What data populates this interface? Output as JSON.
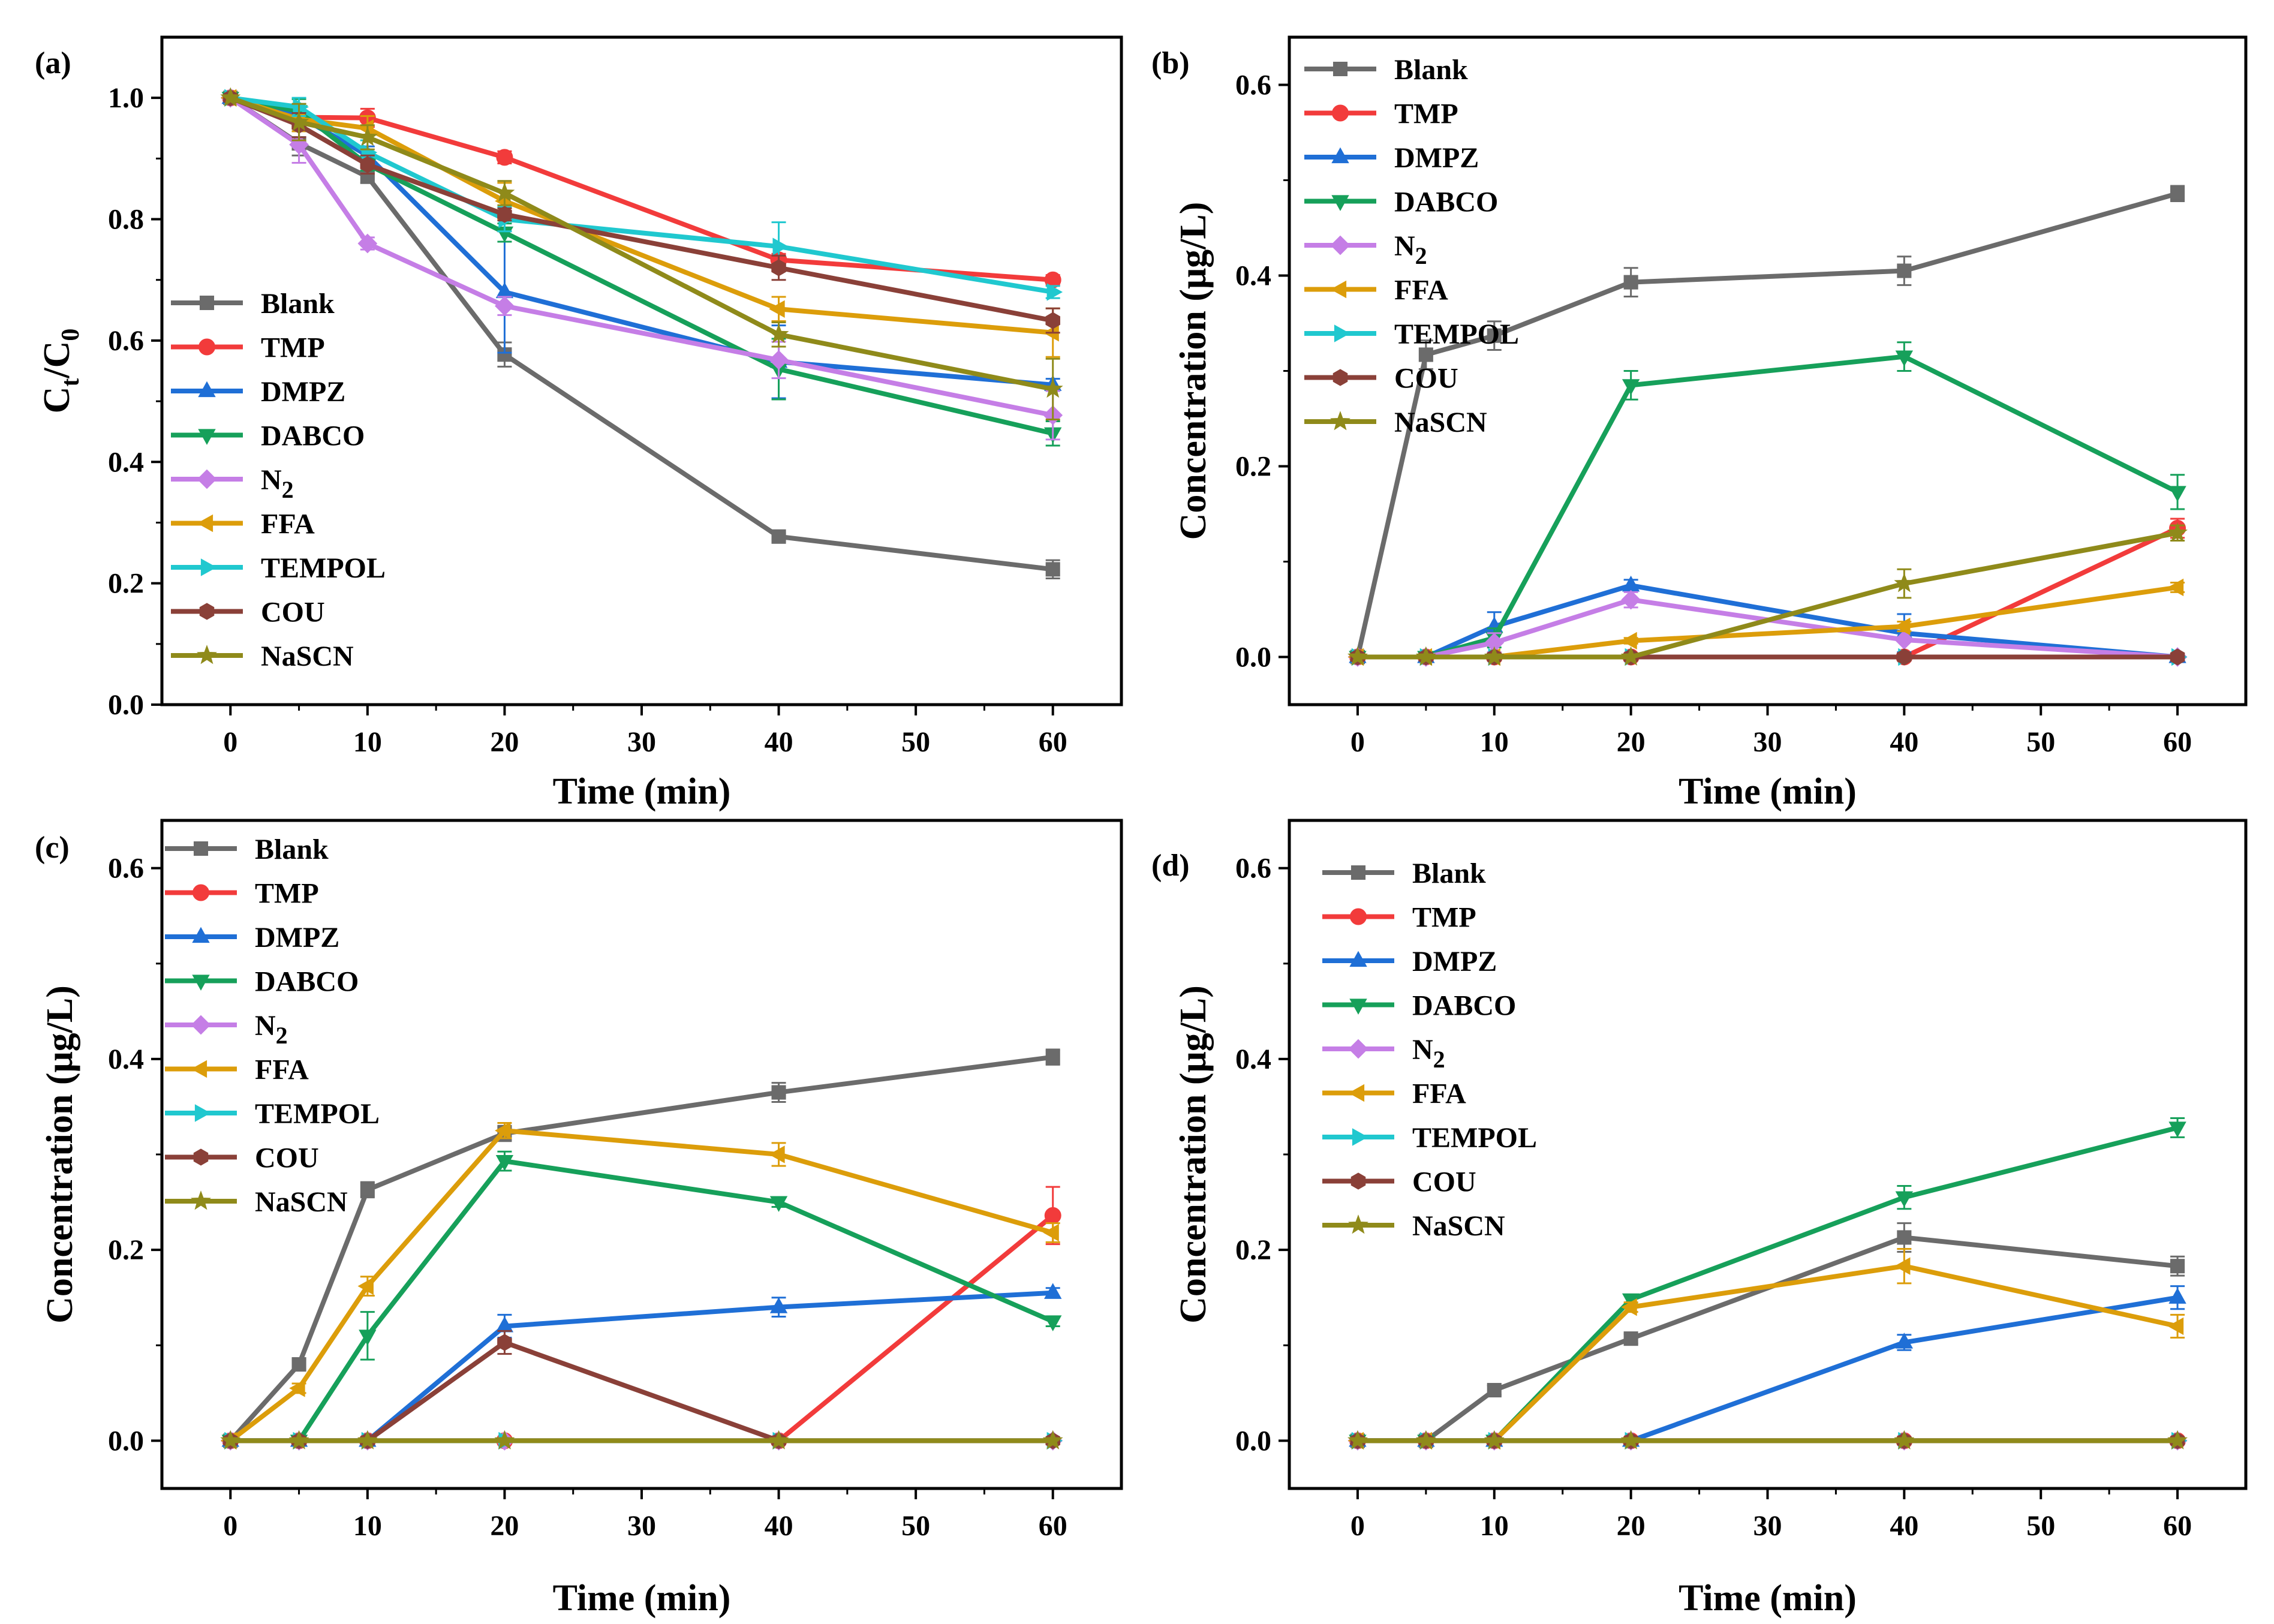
{
  "figure": {
    "series_colors": {
      "Blank": "#6b6b6b",
      "TMP": "#f23b3b",
      "DMPZ": "#1f6fd6",
      "DABCO": "#16a05a",
      "N2": "#c57ee6",
      "FFA": "#dc9d0a",
      "TEMPOL": "#20c8cf",
      "COU": "#8a4038",
      "NaSCN": "#8f8a1a"
    },
    "series_markers": {
      "Blank": "square",
      "TMP": "circle",
      "DMPZ": "triangle-up",
      "DABCO": "triangle-down",
      "N2": "diamond",
      "FFA": "triangle-left",
      "TEMPOL": "triangle-right",
      "COU": "hexagon",
      "NaSCN": "star"
    }
  },
  "chart_data": [
    {
      "panel": "(a)",
      "type": "line",
      "xlabel": "Time (min)",
      "ylabel": "C_t/C_0",
      "ylabel_parts": {
        "main": "C",
        "sub1": "t",
        "sep": "/C",
        "sub2": "0"
      },
      "xlim": [
        -5,
        65
      ],
      "ylim": [
        0,
        1.1
      ],
      "xticks": [
        0,
        10,
        20,
        30,
        40,
        50,
        60
      ],
      "xtick_labels": [
        "0",
        "10",
        "20",
        "30",
        "40",
        "50",
        "60"
      ],
      "yticks": [
        0,
        0.2,
        0.4,
        0.6,
        0.8,
        1.0
      ],
      "ytick_labels": [
        "0.0",
        "0.2",
        "0.4",
        "0.6",
        "0.8",
        "1.0"
      ],
      "legend_position": "lower-left",
      "x": [
        0,
        5,
        10,
        20,
        40,
        60
      ],
      "series": [
        {
          "name": "Blank",
          "label": "Blank",
          "values": [
            1.0,
            0.925,
            0.87,
            0.577,
            0.277,
            0.223
          ],
          "errors": [
            0,
            0.02,
            0.01,
            0.02,
            0.005,
            0.015
          ]
        },
        {
          "name": "TMP",
          "label": "TMP",
          "values": [
            1.0,
            0.968,
            0.967,
            0.902,
            0.733,
            0.7
          ],
          "errors": [
            0,
            0.01,
            0.015,
            0.01,
            0.01,
            0.008
          ]
        },
        {
          "name": "DMPZ",
          "label": "DMPZ",
          "values": [
            1.0,
            0.97,
            0.905,
            0.68,
            0.565,
            0.527
          ],
          "errors": [
            0,
            0.02,
            0.015,
            0.1,
            0.06,
            0.01
          ]
        },
        {
          "name": "DABCO",
          "label": "DABCO",
          "values": [
            1.0,
            0.978,
            0.89,
            0.778,
            0.553,
            0.447
          ],
          "errors": [
            0,
            0.02,
            0.01,
            0.015,
            0.05,
            0.02
          ]
        },
        {
          "name": "N2",
          "label": "N2",
          "label_main": "N",
          "label_sub": "2",
          "values": [
            1.0,
            0.923,
            0.76,
            0.657,
            0.568,
            0.477
          ],
          "errors": [
            0,
            0.03,
            0.01,
            0.015,
            0.03,
            0.04
          ]
        },
        {
          "name": "FFA",
          "label": "FFA",
          "values": [
            1.0,
            0.965,
            0.95,
            0.83,
            0.652,
            0.613
          ],
          "errors": [
            0,
            0.02,
            0.02,
            0.03,
            0.02,
            0.04
          ]
        },
        {
          "name": "TEMPOL",
          "label": "TEMPOL",
          "values": [
            1.0,
            0.985,
            0.91,
            0.8,
            0.755,
            0.68
          ],
          "errors": [
            0,
            0.015,
            0.02,
            0.02,
            0.04,
            0.01
          ]
        },
        {
          "name": "COU",
          "label": "COU",
          "values": [
            1.0,
            0.955,
            0.89,
            0.808,
            0.72,
            0.633
          ],
          "errors": [
            0,
            0.02,
            0.015,
            0.01,
            0.02,
            0.02
          ]
        },
        {
          "name": "NaSCN",
          "label": "NaSCN",
          "values": [
            1.0,
            0.96,
            0.935,
            0.843,
            0.61,
            0.52
          ],
          "errors": [
            0,
            0.03,
            0.02,
            0.02,
            0.02,
            0.05
          ]
        }
      ]
    },
    {
      "panel": "(b)",
      "type": "line",
      "xlabel": "Time (min)",
      "ylabel": "Concentration (μg/L)",
      "xlim": [
        -5,
        65
      ],
      "ylim": [
        -0.05,
        0.65
      ],
      "xticks": [
        0,
        10,
        20,
        30,
        40,
        50,
        60
      ],
      "xtick_labels": [
        "0",
        "10",
        "20",
        "30",
        "40",
        "50",
        "60"
      ],
      "yticks": [
        0,
        0.2,
        0.4,
        0.6
      ],
      "ytick_labels": [
        "0.0",
        "0.2",
        "0.4",
        "0.6"
      ],
      "legend_position": "upper-left",
      "x": [
        0,
        5,
        10,
        20,
        40,
        60
      ],
      "series": [
        {
          "name": "Blank",
          "label": "Blank",
          "values": [
            0,
            0.317,
            0.337,
            0.393,
            0.405,
            0.486
          ],
          "errors": [
            0,
            0.015,
            0.015,
            0.015,
            0.015,
            0.008
          ]
        },
        {
          "name": "TMP",
          "label": "TMP",
          "values": [
            0,
            0,
            0,
            0,
            0,
            0.135
          ],
          "errors": [
            0,
            0,
            0,
            0,
            0,
            0.01
          ]
        },
        {
          "name": "DMPZ",
          "label": "DMPZ",
          "values": [
            0,
            0,
            0.032,
            0.075,
            0.025,
            0
          ],
          "errors": [
            0,
            0,
            0.015,
            0.006,
            0.02,
            0
          ]
        },
        {
          "name": "DABCO",
          "label": "DABCO",
          "values": [
            0,
            0,
            0.02,
            0.285,
            0.315,
            0.173
          ],
          "errors": [
            0,
            0,
            0.01,
            0.015,
            0.015,
            0.018
          ]
        },
        {
          "name": "N2",
          "label": "N2",
          "label_main": "N",
          "label_sub": "2",
          "values": [
            0,
            0,
            0.015,
            0.06,
            0.018,
            0
          ],
          "errors": [
            0,
            0,
            0.01,
            0.008,
            0.015,
            0
          ]
        },
        {
          "name": "FFA",
          "label": "FFA",
          "values": [
            0,
            0,
            0,
            0.017,
            0.032,
            0.073
          ],
          "errors": [
            0,
            0,
            0,
            0.003,
            0.005,
            0.005
          ]
        },
        {
          "name": "TEMPOL",
          "label": "TEMPOL",
          "values": [
            0,
            0,
            0,
            0,
            0,
            0
          ],
          "errors": [
            0,
            0,
            0,
            0,
            0,
            0
          ]
        },
        {
          "name": "COU",
          "label": "COU",
          "values": [
            0,
            0,
            0,
            0,
            0,
            0
          ],
          "errors": [
            0,
            0,
            0,
            0,
            0,
            0
          ]
        },
        {
          "name": "NaSCN",
          "label": "NaSCN",
          "values": [
            0,
            0,
            0,
            0,
            0.077,
            0.13
          ],
          "errors": [
            0,
            0,
            0,
            0,
            0.015,
            0.008
          ]
        }
      ]
    },
    {
      "panel": "(c)",
      "type": "line",
      "xlabel": "Time (min)",
      "ylabel": "Concentration (μg/L)",
      "xlim": [
        -5,
        65
      ],
      "ylim": [
        -0.05,
        0.65
      ],
      "xticks": [
        0,
        10,
        20,
        30,
        40,
        50,
        60
      ],
      "xtick_labels": [
        "0",
        "10",
        "20",
        "30",
        "40",
        "50",
        "60"
      ],
      "yticks": [
        0,
        0.2,
        0.4,
        0.6
      ],
      "ytick_labels": [
        "0.0",
        "0.2",
        "0.4",
        "0.6"
      ],
      "legend_position": "upper-left",
      "x": [
        0,
        5,
        10,
        20,
        40,
        60
      ],
      "series": [
        {
          "name": "Blank",
          "label": "Blank",
          "values": [
            0,
            0.08,
            0.263,
            0.322,
            0.365,
            0.402
          ],
          "errors": [
            0,
            0.005,
            0.008,
            0.008,
            0.01,
            0.008
          ]
        },
        {
          "name": "TMP",
          "label": "TMP",
          "values": [
            0,
            0,
            0,
            0,
            0,
            0.236
          ],
          "errors": [
            0,
            0,
            0,
            0,
            0,
            0.03
          ]
        },
        {
          "name": "DMPZ",
          "label": "DMPZ",
          "values": [
            0,
            0,
            0,
            0.12,
            0.14,
            0.155
          ],
          "errors": [
            0,
            0,
            0,
            0.012,
            0.01,
            0.005
          ]
        },
        {
          "name": "DABCO",
          "label": "DABCO",
          "values": [
            0,
            0,
            0.11,
            0.293,
            0.25,
            0.125
          ],
          "errors": [
            0,
            0,
            0.025,
            0.01,
            0.005,
            0.005
          ]
        },
        {
          "name": "N2",
          "label": "N2",
          "label_main": "N",
          "label_sub": "2",
          "values": [
            0,
            0,
            0,
            0,
            0,
            0
          ],
          "errors": [
            0,
            0,
            0,
            0,
            0,
            0
          ]
        },
        {
          "name": "FFA",
          "label": "FFA",
          "values": [
            0,
            0.055,
            0.162,
            0.325,
            0.3,
            0.218
          ],
          "errors": [
            0,
            0.005,
            0.01,
            0.008,
            0.012,
            0.01
          ]
        },
        {
          "name": "TEMPOL",
          "label": "TEMPOL",
          "values": [
            0,
            0,
            0,
            0,
            0,
            0
          ],
          "errors": [
            0,
            0,
            0,
            0,
            0,
            0
          ]
        },
        {
          "name": "COU",
          "label": "COU",
          "values": [
            0,
            0,
            0,
            0.103,
            0,
            0
          ],
          "errors": [
            0,
            0,
            0,
            0.012,
            0,
            0
          ]
        },
        {
          "name": "NaSCN",
          "label": "NaSCN",
          "values": [
            0,
            0,
            0,
            0,
            0,
            0
          ],
          "errors": [
            0,
            0,
            0,
            0,
            0,
            0
          ]
        }
      ]
    },
    {
      "panel": "(d)",
      "type": "line",
      "xlabel": "Time (min)",
      "ylabel": "Concentration (μg/L)",
      "xlim": [
        -5,
        65
      ],
      "ylim": [
        -0.05,
        0.65
      ],
      "xticks": [
        0,
        10,
        20,
        30,
        40,
        50,
        60
      ],
      "xtick_labels": [
        "0",
        "10",
        "20",
        "30",
        "40",
        "50",
        "60"
      ],
      "yticks": [
        0,
        0.2,
        0.4,
        0.6
      ],
      "ytick_labels": [
        "0.0",
        "0.2",
        "0.4",
        "0.6"
      ],
      "legend_position": "upper-left",
      "x": [
        0,
        5,
        10,
        20,
        40,
        60
      ],
      "series": [
        {
          "name": "Blank",
          "label": "Blank",
          "values": [
            0,
            0,
            0.053,
            0.107,
            0.213,
            0.183
          ],
          "errors": [
            0,
            0,
            0.005,
            0.005,
            0.015,
            0.01
          ]
        },
        {
          "name": "TMP",
          "label": "TMP",
          "values": [
            0,
            0,
            0,
            0,
            0,
            0
          ],
          "errors": [
            0,
            0,
            0,
            0,
            0,
            0
          ]
        },
        {
          "name": "DMPZ",
          "label": "DMPZ",
          "values": [
            0,
            0,
            0,
            0,
            0.103,
            0.15
          ],
          "errors": [
            0,
            0,
            0,
            0,
            0.008,
            0.012
          ]
        },
        {
          "name": "DABCO",
          "label": "DABCO",
          "values": [
            0,
            0,
            0,
            0.148,
            0.255,
            0.328
          ],
          "errors": [
            0,
            0,
            0,
            0.005,
            0.012,
            0.01
          ]
        },
        {
          "name": "N2",
          "label": "N2",
          "label_main": "N",
          "label_sub": "2",
          "values": [
            0,
            0,
            0,
            0,
            0,
            0
          ],
          "errors": [
            0,
            0,
            0,
            0,
            0,
            0
          ]
        },
        {
          "name": "FFA",
          "label": "FFA",
          "values": [
            0,
            0,
            0,
            0.14,
            0.183,
            0.12
          ],
          "errors": [
            0,
            0,
            0,
            0.005,
            0.018,
            0.012
          ]
        },
        {
          "name": "TEMPOL",
          "label": "TEMPOL",
          "values": [
            0,
            0,
            0,
            0,
            0,
            0
          ],
          "errors": [
            0,
            0,
            0,
            0,
            0,
            0
          ]
        },
        {
          "name": "COU",
          "label": "COU",
          "values": [
            0,
            0,
            0,
            0,
            0,
            0
          ],
          "errors": [
            0,
            0,
            0,
            0,
            0,
            0
          ]
        },
        {
          "name": "NaSCN",
          "label": "NaSCN",
          "values": [
            0,
            0,
            0,
            0,
            0,
            0
          ],
          "errors": [
            0,
            0,
            0,
            0,
            0,
            0
          ]
        }
      ]
    }
  ]
}
